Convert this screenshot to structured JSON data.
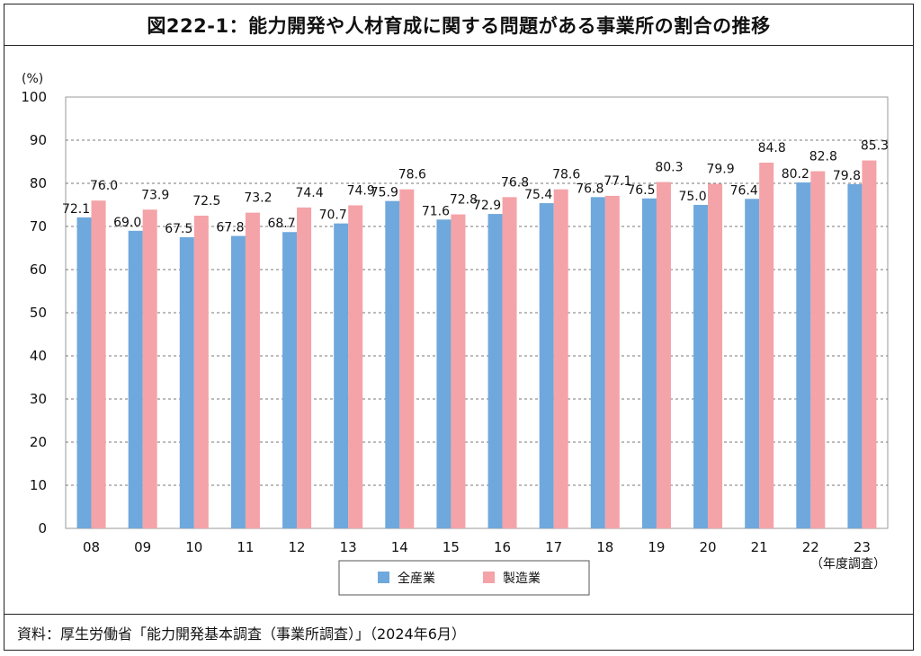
{
  "title": "図222-1：能力開発や人材育成に関する問題がある事業所の割合の推移",
  "source": "資料：厚生労働省「能力開発基本調査（事業所調査）」（2024年6月）",
  "chart_data": {
    "type": "bar",
    "unit_label": "(%)",
    "xaxis_note": "（年度調査）",
    "categories": [
      "08",
      "09",
      "10",
      "11",
      "12",
      "13",
      "14",
      "15",
      "16",
      "17",
      "18",
      "19",
      "20",
      "21",
      "22",
      "23"
    ],
    "ylim": [
      0,
      100
    ],
    "yticks": [
      0,
      10,
      20,
      30,
      40,
      50,
      60,
      70,
      80,
      90,
      100
    ],
    "series": [
      {
        "name": "全産業",
        "color": "#6fa8dc",
        "values": [
          72.1,
          69.0,
          67.5,
          67.8,
          68.7,
          70.7,
          75.9,
          71.6,
          72.9,
          75.4,
          76.8,
          76.5,
          75.0,
          76.4,
          80.2,
          79.8
        ]
      },
      {
        "name": "製造業",
        "color": "#f4a3a8",
        "values": [
          76.0,
          73.9,
          72.5,
          73.2,
          74.4,
          74.9,
          78.6,
          72.8,
          76.8,
          78.6,
          77.1,
          80.3,
          79.9,
          84.8,
          82.8,
          85.3
        ]
      }
    ],
    "legend_position": "bottom-center"
  }
}
